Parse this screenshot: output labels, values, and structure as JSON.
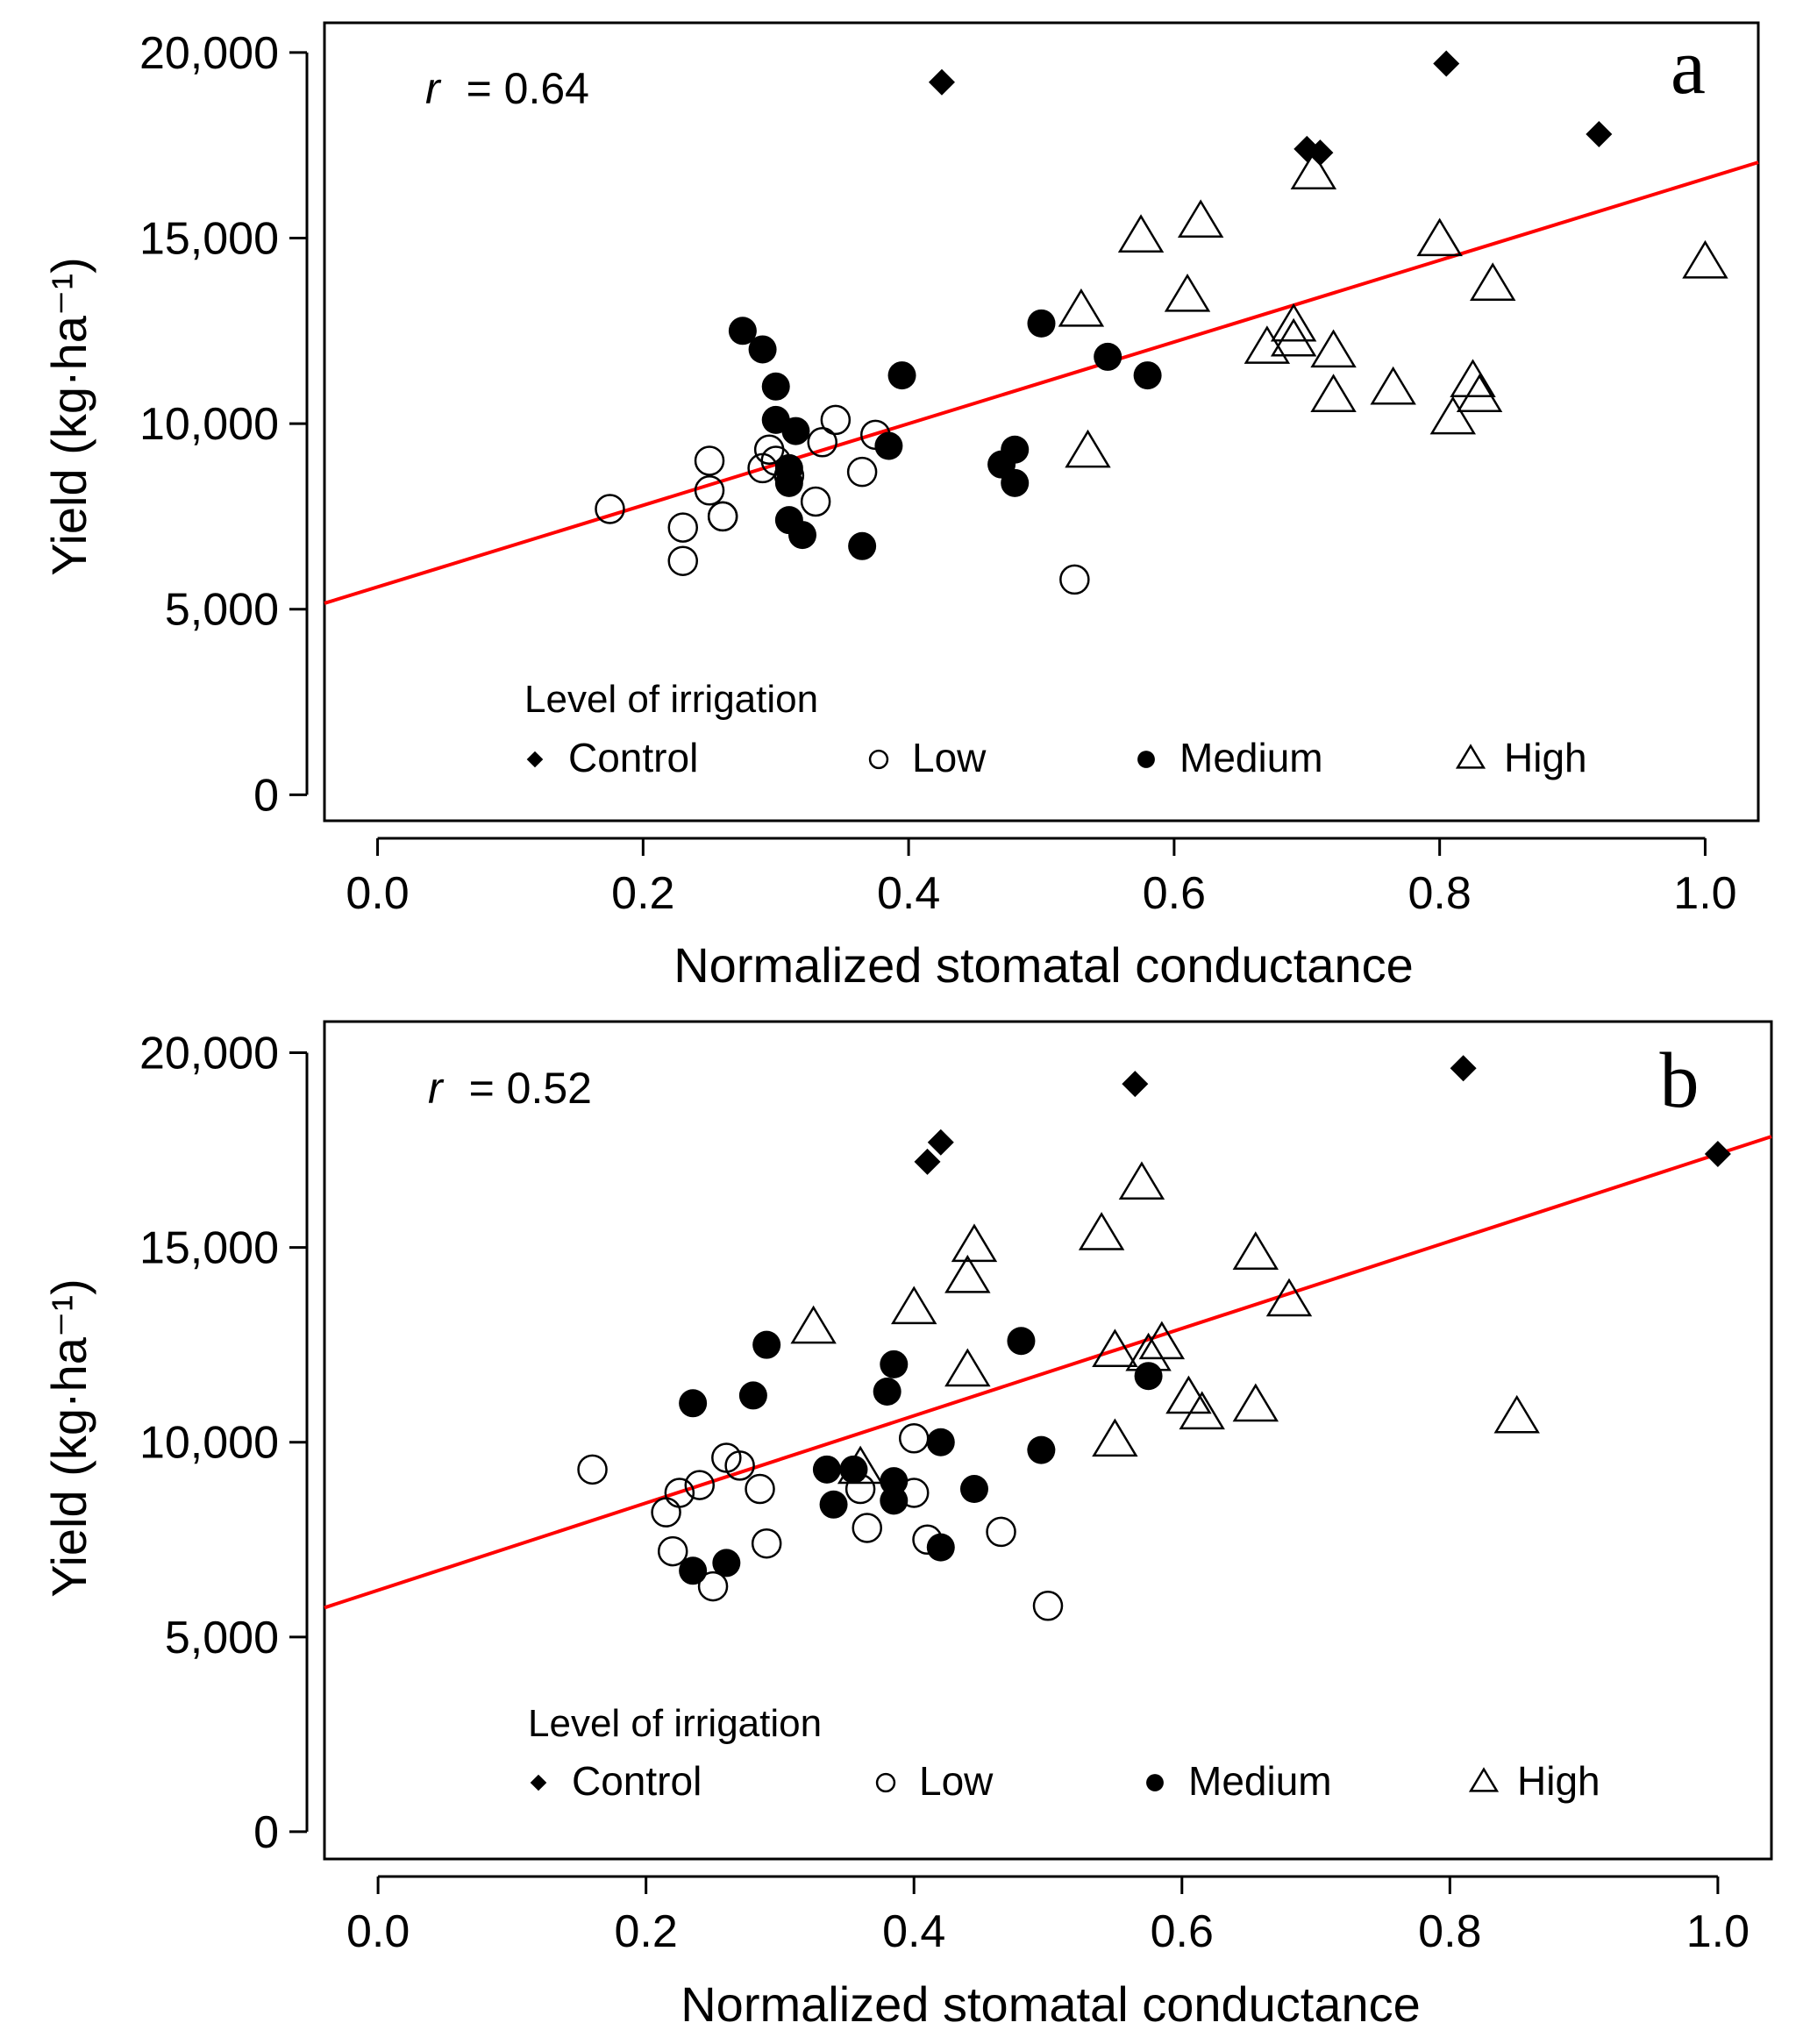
{
  "figure": {
    "colors": {
      "fit_line": "#ff0000",
      "marker": "#000000",
      "background": "#ffffff"
    }
  },
  "chart_data": [
    {
      "panel_label": "a",
      "type": "scatter",
      "title": "",
      "xlabel": "Normalized stomatal conductance",
      "ylabel": "Yield (kg·ha⁻¹)",
      "xlim": [
        -0.04,
        1.04
      ],
      "ylim": [
        -700,
        20800
      ],
      "x_ticks": [
        0.0,
        0.2,
        0.4,
        0.6,
        0.8,
        1.0
      ],
      "x_tick_labels": [
        "0.0",
        "0.2",
        "0.4",
        "0.6",
        "0.8",
        "1.0"
      ],
      "y_ticks": [
        0,
        5000,
        10000,
        15000,
        20000
      ],
      "y_tick_labels": [
        "0",
        "5,000",
        "10,000",
        "15,000",
        "20,000"
      ],
      "annotation": {
        "r_symbol": "r",
        "r_text": "= 0.64"
      },
      "legend": {
        "title": "Level of irrigation",
        "position": "bottom-center",
        "entries": [
          {
            "label": "Control",
            "marker": "diamond-filled"
          },
          {
            "label": "Low",
            "marker": "circle-open"
          },
          {
            "label": "Medium",
            "marker": "circle-filled"
          },
          {
            "label": "High",
            "marker": "triangle-open"
          }
        ]
      },
      "fit_line": {
        "intercept": 5600,
        "slope": 11000
      },
      "series": [
        {
          "name": "Control",
          "marker": "diamond-filled",
          "points": [
            {
              "x": 0.425,
              "y": 19200
            },
            {
              "x": 0.805,
              "y": 19700
            },
            {
              "x": 0.7,
              "y": 17400
            },
            {
              "x": 0.71,
              "y": 17300
            },
            {
              "x": 0.92,
              "y": 17800
            }
          ]
        },
        {
          "name": "Low",
          "marker": "circle-open",
          "points": [
            {
              "x": 0.175,
              "y": 7700
            },
            {
              "x": 0.23,
              "y": 7200
            },
            {
              "x": 0.23,
              "y": 6300
            },
            {
              "x": 0.25,
              "y": 9000
            },
            {
              "x": 0.25,
              "y": 8200
            },
            {
              "x": 0.26,
              "y": 7500
            },
            {
              "x": 0.26,
              "y": 7500
            },
            {
              "x": 0.29,
              "y": 8800
            },
            {
              "x": 0.295,
              "y": 9300
            },
            {
              "x": 0.3,
              "y": 9000
            },
            {
              "x": 0.31,
              "y": 8600
            },
            {
              "x": 0.33,
              "y": 7900
            },
            {
              "x": 0.335,
              "y": 9500
            },
            {
              "x": 0.345,
              "y": 10100
            },
            {
              "x": 0.365,
              "y": 8700
            },
            {
              "x": 0.375,
              "y": 9700
            },
            {
              "x": 0.525,
              "y": 5800
            }
          ]
        },
        {
          "name": "Medium",
          "marker": "circle-filled",
          "points": [
            {
              "x": 0.275,
              "y": 12500
            },
            {
              "x": 0.29,
              "y": 12000
            },
            {
              "x": 0.3,
              "y": 11000
            },
            {
              "x": 0.3,
              "y": 10100
            },
            {
              "x": 0.31,
              "y": 8800
            },
            {
              "x": 0.315,
              "y": 9800
            },
            {
              "x": 0.31,
              "y": 8400
            },
            {
              "x": 0.31,
              "y": 7400
            },
            {
              "x": 0.32,
              "y": 7000
            },
            {
              "x": 0.365,
              "y": 6700
            },
            {
              "x": 0.385,
              "y": 9400
            },
            {
              "x": 0.395,
              "y": 11300
            },
            {
              "x": 0.47,
              "y": 8900
            },
            {
              "x": 0.48,
              "y": 9300
            },
            {
              "x": 0.48,
              "y": 8400
            },
            {
              "x": 0.5,
              "y": 12700
            },
            {
              "x": 0.55,
              "y": 11800
            },
            {
              "x": 0.58,
              "y": 11300
            }
          ]
        },
        {
          "name": "High",
          "marker": "triangle-open",
          "points": [
            {
              "x": 0.53,
              "y": 13000
            },
            {
              "x": 0.535,
              "y": 9200
            },
            {
              "x": 0.575,
              "y": 15000
            },
            {
              "x": 0.61,
              "y": 13400
            },
            {
              "x": 0.62,
              "y": 15400
            },
            {
              "x": 0.67,
              "y": 12000
            },
            {
              "x": 0.69,
              "y": 12600
            },
            {
              "x": 0.69,
              "y": 12200
            },
            {
              "x": 0.705,
              "y": 16700
            },
            {
              "x": 0.72,
              "y": 11900
            },
            {
              "x": 0.72,
              "y": 10700
            },
            {
              "x": 0.765,
              "y": 10900
            },
            {
              "x": 0.8,
              "y": 14900
            },
            {
              "x": 0.81,
              "y": 10100
            },
            {
              "x": 0.825,
              "y": 11100
            },
            {
              "x": 0.83,
              "y": 10700
            },
            {
              "x": 0.84,
              "y": 13700
            },
            {
              "x": 1.0,
              "y": 14300
            }
          ]
        }
      ]
    },
    {
      "panel_label": "b",
      "type": "scatter",
      "title": "",
      "xlabel": "Normalized stomatal conductance",
      "ylabel": "Yield (kg·ha⁻¹)",
      "xlim": [
        -0.04,
        1.04
      ],
      "ylim": [
        -700,
        20800
      ],
      "x_ticks": [
        0.0,
        0.2,
        0.4,
        0.6,
        0.8,
        1.0
      ],
      "x_tick_labels": [
        "0.0",
        "0.2",
        "0.4",
        "0.6",
        "0.8",
        "1.0"
      ],
      "y_ticks": [
        0,
        5000,
        10000,
        15000,
        20000
      ],
      "y_tick_labels": [
        "0",
        "5,000",
        "10,000",
        "15,000",
        "20,000"
      ],
      "annotation": {
        "r_symbol": "r",
        "r_text": "= 0.52"
      },
      "legend": {
        "title": "Level of irrigation",
        "position": "bottom-center",
        "entries": [
          {
            "label": "Control",
            "marker": "diamond-filled"
          },
          {
            "label": "Low",
            "marker": "circle-open"
          },
          {
            "label": "Medium",
            "marker": "circle-filled"
          },
          {
            "label": "High",
            "marker": "triangle-open"
          }
        ]
      },
      "fit_line": {
        "intercept": 6200,
        "slope": 11200
      },
      "series": [
        {
          "name": "Control",
          "marker": "diamond-filled",
          "points": [
            {
              "x": 0.41,
              "y": 17200
            },
            {
              "x": 0.42,
              "y": 17700
            },
            {
              "x": 0.565,
              "y": 19200
            },
            {
              "x": 0.81,
              "y": 19600
            },
            {
              "x": 1.0,
              "y": 17400
            }
          ]
        },
        {
          "name": "Low",
          "marker": "circle-open",
          "points": [
            {
              "x": 0.16,
              "y": 9300
            },
            {
              "x": 0.215,
              "y": 8200
            },
            {
              "x": 0.22,
              "y": 7200
            },
            {
              "x": 0.225,
              "y": 8700
            },
            {
              "x": 0.24,
              "y": 8900
            },
            {
              "x": 0.25,
              "y": 6300
            },
            {
              "x": 0.26,
              "y": 9600
            },
            {
              "x": 0.27,
              "y": 9400
            },
            {
              "x": 0.285,
              "y": 8800
            },
            {
              "x": 0.29,
              "y": 7400
            },
            {
              "x": 0.36,
              "y": 8800
            },
            {
              "x": 0.365,
              "y": 7800
            },
            {
              "x": 0.4,
              "y": 10100
            },
            {
              "x": 0.4,
              "y": 8700
            },
            {
              "x": 0.41,
              "y": 7500
            },
            {
              "x": 0.465,
              "y": 7700
            },
            {
              "x": 0.5,
              "y": 5800
            }
          ]
        },
        {
          "name": "Medium",
          "marker": "circle-filled",
          "points": [
            {
              "x": 0.235,
              "y": 11000
            },
            {
              "x": 0.235,
              "y": 6700
            },
            {
              "x": 0.26,
              "y": 6900
            },
            {
              "x": 0.28,
              "y": 11200
            },
            {
              "x": 0.29,
              "y": 12500
            },
            {
              "x": 0.335,
              "y": 9300
            },
            {
              "x": 0.34,
              "y": 8400
            },
            {
              "x": 0.355,
              "y": 9300
            },
            {
              "x": 0.38,
              "y": 11300
            },
            {
              "x": 0.385,
              "y": 12000
            },
            {
              "x": 0.385,
              "y": 9000
            },
            {
              "x": 0.385,
              "y": 8500
            },
            {
              "x": 0.42,
              "y": 10000
            },
            {
              "x": 0.42,
              "y": 7300
            },
            {
              "x": 0.445,
              "y": 8800
            },
            {
              "x": 0.48,
              "y": 12600
            },
            {
              "x": 0.495,
              "y": 9800
            },
            {
              "x": 0.575,
              "y": 11700
            }
          ]
        },
        {
          "name": "High",
          "marker": "triangle-open",
          "points": [
            {
              "x": 0.325,
              "y": 12900
            },
            {
              "x": 0.36,
              "y": 9300
            },
            {
              "x": 0.4,
              "y": 13400
            },
            {
              "x": 0.44,
              "y": 14200
            },
            {
              "x": 0.445,
              "y": 15000
            },
            {
              "x": 0.44,
              "y": 11800
            },
            {
              "x": 0.54,
              "y": 15300
            },
            {
              "x": 0.55,
              "y": 12300
            },
            {
              "x": 0.55,
              "y": 10000
            },
            {
              "x": 0.57,
              "y": 16600
            },
            {
              "x": 0.575,
              "y": 12200
            },
            {
              "x": 0.585,
              "y": 12500
            },
            {
              "x": 0.605,
              "y": 11100
            },
            {
              "x": 0.615,
              "y": 10700
            },
            {
              "x": 0.655,
              "y": 14800
            },
            {
              "x": 0.655,
              "y": 10900
            },
            {
              "x": 0.68,
              "y": 13600
            },
            {
              "x": 0.85,
              "y": 10600
            }
          ]
        }
      ]
    }
  ]
}
